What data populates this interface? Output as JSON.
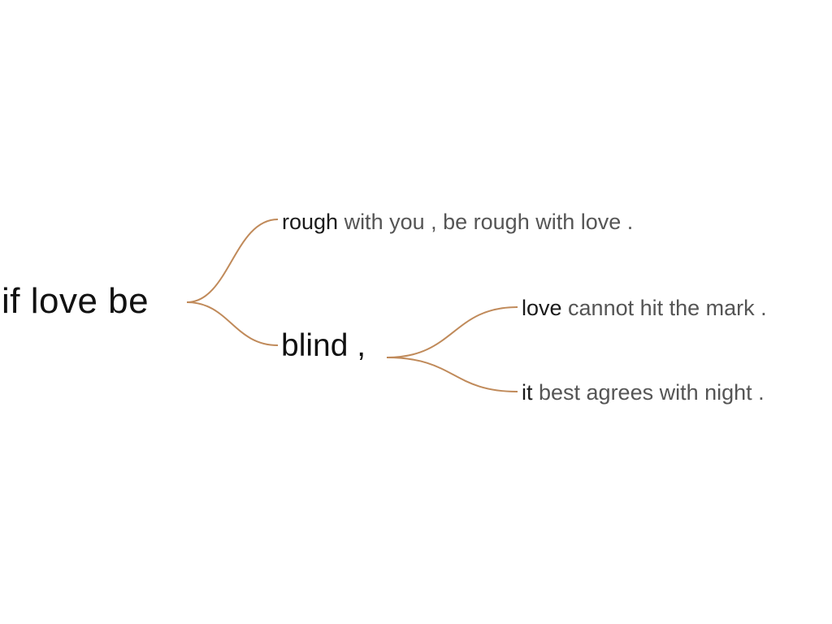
{
  "tree": {
    "root": {
      "label": "if love be"
    },
    "branch_1": {
      "head": "rough",
      "rest": " with you , be rough with love ."
    },
    "branch_2": {
      "label": "blind ,",
      "children": [
        {
          "head": "love",
          "rest": " cannot hit the mark ."
        },
        {
          "head": "it",
          "rest": " best agrees with night ."
        }
      ]
    }
  },
  "colors": {
    "connector": "#c08a5a",
    "head_text": "#1a1a1a",
    "rest_text": "#555555",
    "background": "#ffffff"
  }
}
